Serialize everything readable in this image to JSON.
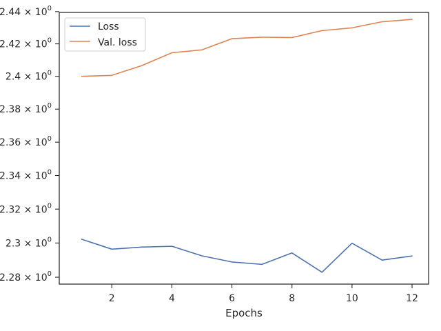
{
  "chart_data": {
    "type": "line",
    "xlabel": "Epochs",
    "ylabel": "",
    "title": "",
    "x": [
      1,
      2,
      3,
      4,
      5,
      6,
      7,
      8,
      9,
      10,
      11,
      12
    ],
    "series": [
      {
        "name": "Loss",
        "color": "#4c72b0",
        "values": [
          2.3022,
          2.2964,
          2.2976,
          2.2981,
          2.2925,
          2.2889,
          2.2875,
          2.2942,
          2.2829,
          2.2999,
          2.29,
          2.2924
        ]
      },
      {
        "name": "Val. loss",
        "color": "#dd8452",
        "values": [
          2.4,
          2.4006,
          2.4066,
          2.4145,
          2.4163,
          2.4232,
          2.4241,
          2.4239,
          2.4282,
          2.4299,
          2.4337,
          2.4352
        ]
      }
    ],
    "xlim": [
      0.25,
      12.55
    ],
    "ylim": [
      2.276,
      2.4395
    ],
    "yscale": "log",
    "xticks": [
      2,
      4,
      6,
      8,
      10,
      12
    ],
    "xtick_labels": [
      "2",
      "4",
      "6",
      "8",
      "10",
      "12"
    ],
    "yticks": [
      2.28,
      2.3,
      2.32,
      2.34,
      2.36,
      2.38,
      2.4,
      2.42,
      2.44
    ],
    "ytick_labels": [
      "2.28",
      "2.3",
      "2.32",
      "2.34",
      "2.36",
      "2.38",
      "2.4",
      "2.42",
      "2.44"
    ],
    "ytick_suffix": "× 10",
    "ytick_exponent": "0",
    "grid": false,
    "legend_position": "top-left"
  }
}
